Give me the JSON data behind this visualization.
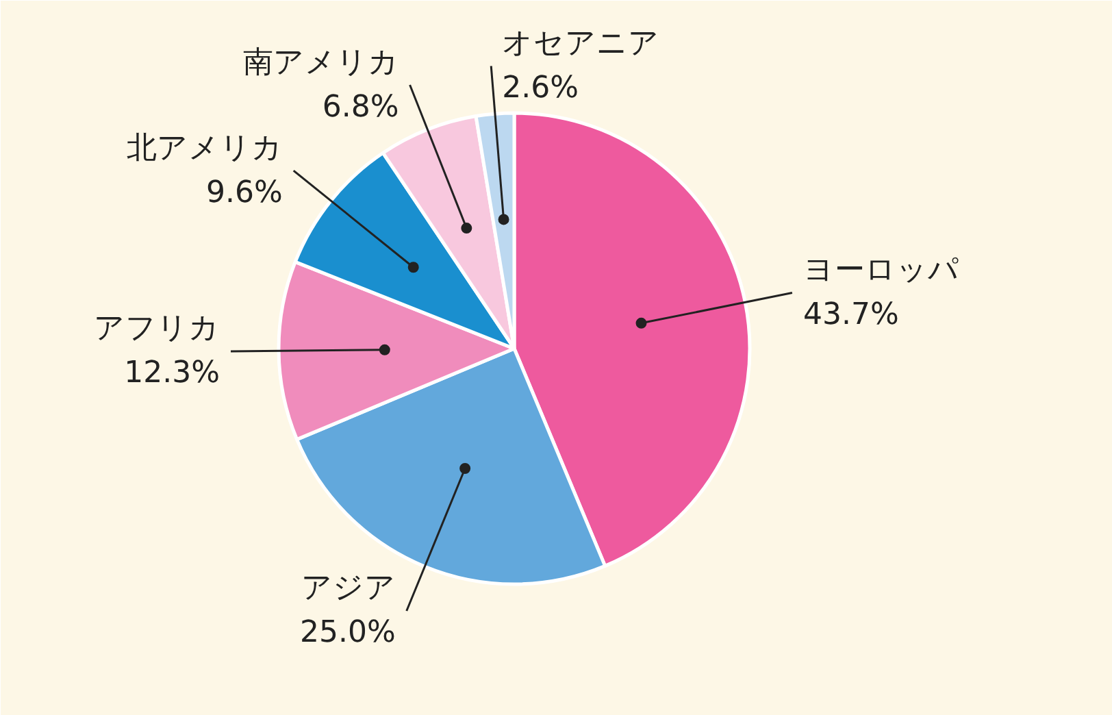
{
  "chart_data": {
    "type": "pie",
    "categories": [
      "ヨーロッパ",
      "アジア",
      "アフリカ",
      "北アメリカ",
      "南アメリカ",
      "オセアニア"
    ],
    "values": [
      43.7,
      25.0,
      12.3,
      9.6,
      6.8,
      2.6
    ],
    "colors": [
      "#ee5a9e",
      "#62a8dc",
      "#f08cbc",
      "#1a8fcf",
      "#f8c8de",
      "#bcd8f0"
    ],
    "value_labels": [
      "43.7%",
      "25.0%",
      "12.3%",
      "9.6%",
      "6.8%",
      "2.6%"
    ]
  }
}
